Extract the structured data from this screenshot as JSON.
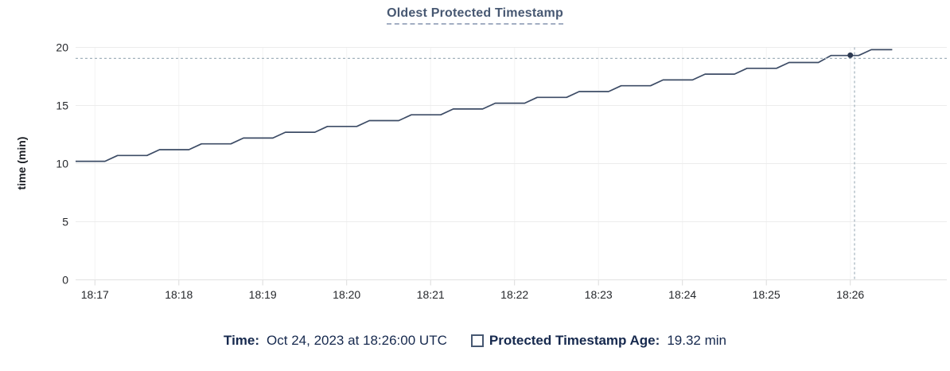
{
  "chart": {
    "title": "Oldest Protected Timestamp"
  },
  "legend": {
    "time_label": "Time:",
    "time_value": "Oct 24, 2023 at 18:26:00 UTC",
    "series_label": "Protected Timestamp Age:",
    "series_value": "19.32 min",
    "series_checkbox_checked": false
  },
  "chart_data": {
    "type": "line",
    "title": "Oldest Protected Timestamp",
    "xlabel": "",
    "ylabel": "time (min)",
    "grid": true,
    "legend_position": "bottom-center",
    "y_ticks": [
      0,
      5,
      10,
      15,
      20
    ],
    "ylim": [
      0,
      20
    ],
    "x_tick_labels": [
      "18:17",
      "18:18",
      "18:19",
      "18:20",
      "18:21",
      "18:22",
      "18:23",
      "18:24",
      "18:25",
      "18:26"
    ],
    "x_tick_minutes": [
      17,
      18,
      19,
      20,
      21,
      22,
      23,
      24,
      25,
      26
    ],
    "xlim_minutes": [
      16.77,
      27.15
    ],
    "series": [
      {
        "name": "Protected Timestamp Age",
        "unit": "min",
        "points": [
          [
            16.77,
            10.2
          ],
          [
            17.12,
            10.2
          ],
          [
            17.27,
            10.7
          ],
          [
            17.62,
            10.7
          ],
          [
            17.77,
            11.2
          ],
          [
            18.12,
            11.2
          ],
          [
            18.27,
            11.7
          ],
          [
            18.62,
            11.7
          ],
          [
            18.77,
            12.2
          ],
          [
            19.12,
            12.2
          ],
          [
            19.27,
            12.7
          ],
          [
            19.62,
            12.7
          ],
          [
            19.77,
            13.2
          ],
          [
            20.12,
            13.2
          ],
          [
            20.27,
            13.7
          ],
          [
            20.62,
            13.7
          ],
          [
            20.77,
            14.2
          ],
          [
            21.12,
            14.2
          ],
          [
            21.27,
            14.7
          ],
          [
            21.62,
            14.7
          ],
          [
            21.77,
            15.2
          ],
          [
            22.12,
            15.2
          ],
          [
            22.27,
            15.7
          ],
          [
            22.62,
            15.7
          ],
          [
            22.77,
            16.2
          ],
          [
            23.12,
            16.2
          ],
          [
            23.27,
            16.7
          ],
          [
            23.62,
            16.7
          ],
          [
            23.77,
            17.2
          ],
          [
            24.12,
            17.2
          ],
          [
            24.27,
            17.7
          ],
          [
            24.62,
            17.7
          ],
          [
            24.77,
            18.2
          ],
          [
            25.12,
            18.2
          ],
          [
            25.27,
            18.7
          ],
          [
            25.62,
            18.7
          ],
          [
            25.77,
            19.3
          ],
          [
            26.1,
            19.3
          ],
          [
            26.25,
            19.8
          ],
          [
            26.5,
            19.8
          ]
        ]
      }
    ],
    "hover": {
      "time_label": "Oct 24, 2023 at 18:26:00 UTC",
      "time_minutes": 26.05,
      "point_minutes": 26.0,
      "value_min": 19.32,
      "crosshair_value_min": 19.05
    },
    "colors": {
      "line": "#3d4c66",
      "dot": "#2c3a52",
      "crosshair": "#a2b1bc",
      "grid_major": "#ececec",
      "axis_line": "#e2e2e2",
      "grid_minor": "#f3f3f3",
      "tick": "#dcdcdc",
      "axis_text": "#26282c",
      "y_axis_title_text": "#1b1e24",
      "title": "#475872",
      "title_underline": "#a3aec3",
      "legend_text": "#16294e",
      "checkbox_border": "#475872"
    }
  }
}
